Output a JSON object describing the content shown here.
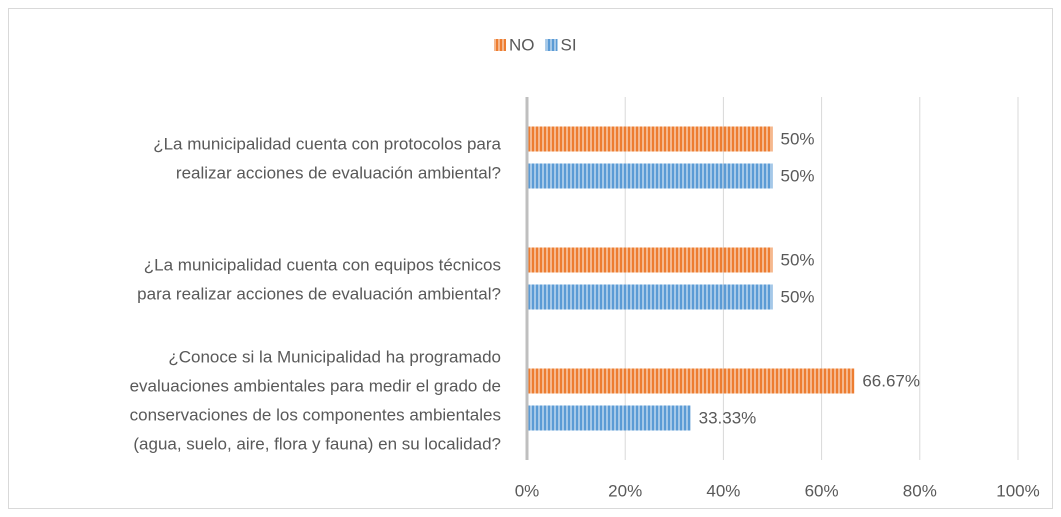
{
  "chart_data": {
    "type": "hbar",
    "categories": [
      [
        "¿La municipalidad cuenta con protocolos para",
        "realizar acciones de evaluación ambiental?"
      ],
      [
        "¿La municipalidad cuenta con equipos técnicos",
        "para realizar acciones de evaluación ambiental?"
      ],
      [
        "¿Conoce si la Municipalidad ha programado",
        "evaluaciones ambientales para medir el grado de",
        "conservaciones de los componentes ambientales",
        "(agua, suelo, aire, flora y fauna) en su localidad?"
      ]
    ],
    "series": [
      {
        "name": "NO",
        "color": "#ed7d31",
        "values": [
          50,
          50,
          66.67
        ],
        "value_labels": [
          "50%",
          "50%",
          "66.67%"
        ]
      },
      {
        "name": "SI",
        "color": "#5b9bd5",
        "values": [
          50,
          50,
          33.33
        ],
        "value_labels": [
          "50%",
          "50%",
          "33.33%"
        ]
      }
    ],
    "xlim": [
      0,
      100
    ],
    "xticks": [
      {
        "value": 0,
        "label": "0%"
      },
      {
        "value": 20,
        "label": "20%"
      },
      {
        "value": 40,
        "label": "40%"
      },
      {
        "value": 60,
        "label": "60%"
      },
      {
        "value": 80,
        "label": "80%"
      },
      {
        "value": 100,
        "label": "100%"
      }
    ],
    "grid": true,
    "legend": "top",
    "pattern": "vertical-stripes"
  }
}
